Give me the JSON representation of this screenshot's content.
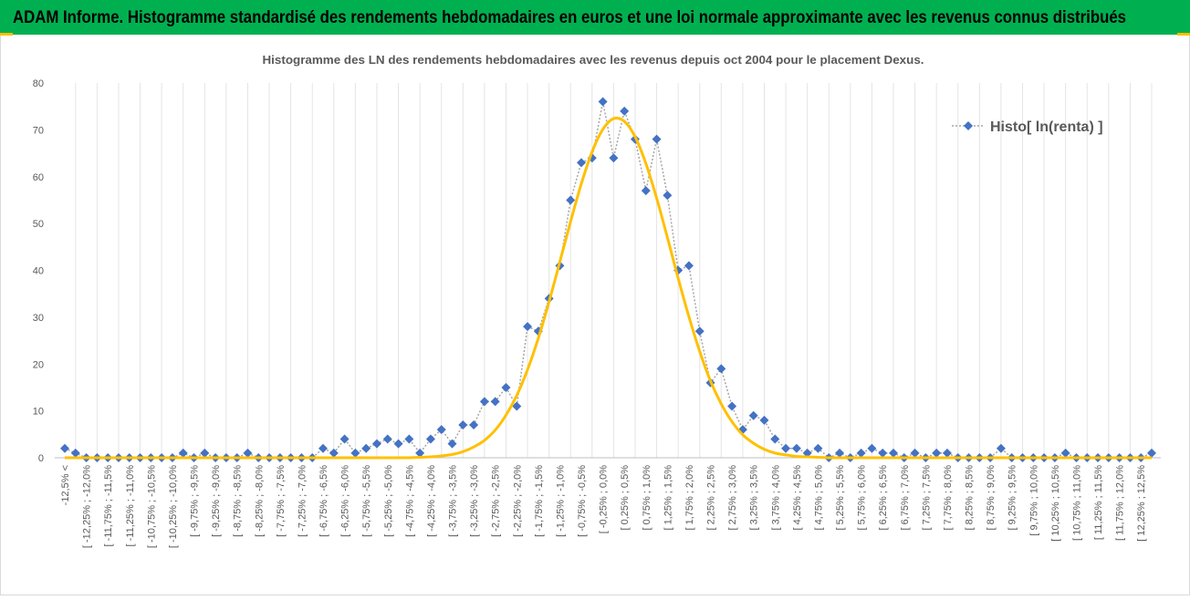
{
  "header": {
    "title": "ADAM Informe. Histogramme standardisé des rendements hebdomadaires en euros et une loi normale approximante avec les revenus connus distribués"
  },
  "chart_data": {
    "type": "line",
    "title": "Histogramme  des LN des rendements hebdomadaires avec les revenus depuis oct 2004 pour le placement Dexus.",
    "categories": [
      "-12,5% <",
      null,
      "[ -12,25% ; -12,0%",
      null,
      "[ -11,75% ; -11,5%",
      null,
      "[ -11,25% ; -11,0%",
      null,
      "[ -10,75% ; -10,5%",
      null,
      "[ -10,25% ; -10,0%",
      null,
      "[ -9,75% ; -9,5%",
      null,
      "[ -9,25% ; -9,0%",
      null,
      "[ -8,75% ; -8,5%",
      null,
      "[ -8,25% ; -8,0%",
      null,
      "[ -7,75% ; -7,5%",
      null,
      "[ -7,25% ; -7,0%",
      null,
      "[ -6,75% ; -6,5%",
      null,
      "[ -6,25% ; -6,0%",
      null,
      "[ -5,75% ; -5,5%",
      null,
      "[ -5,25% ; -5,0%",
      null,
      "[ -4,75% ; -4,5%",
      null,
      "[ -4,25% ; -4,0%",
      null,
      "[ -3,75% ; -3,5%",
      null,
      "[ -3,25% ; -3,0%",
      null,
      "[ -2,75% ; -2,5%",
      null,
      "[ -2,25% ; -2,0%",
      null,
      "[ -1,75% ; -1,5%",
      null,
      "[ -1,25% ; -1,0%",
      null,
      "[ -0,75% ; -0,5%",
      null,
      "[ -0,25% ; 0,0%",
      null,
      "[ 0,25% ; 0,5%",
      null,
      "[ 0,75% ; 1,0%",
      null,
      "[ 1,25% ; 1,5%",
      null,
      "[ 1,75% ; 2,0%",
      null,
      "[ 2,25% ; 2,5%",
      null,
      "[ 2,75% ; 3,0%",
      null,
      "[ 3,25% ; 3,5%",
      null,
      "[ 3,75% ; 4,0%",
      null,
      "[ 4,25% ; 4,5%",
      null,
      "[ 4,75% ; 5,0%",
      null,
      "[ 5,25% ; 5,5%",
      null,
      "[ 5,75% ; 6,0%",
      null,
      "[ 6,25% ; 6,5%",
      null,
      "[ 6,75% ; 7,0%",
      null,
      "[ 7,25% ; 7,5%",
      null,
      "[ 7,75% ; 8,0%",
      null,
      "[ 8,25% ; 8,5%",
      null,
      "[ 8,75% ; 9,0%",
      null,
      "[ 9,25% ; 9,5%",
      null,
      "[ 9,75% ; 10,0%",
      null,
      "[ 10,25% ; 10,5%",
      null,
      "[ 10,75% ; 11,0%",
      null,
      "[ 11,25% ; 11,5%",
      null,
      "[ 11,75% ; 12,0%",
      null,
      "[ 12,25% ; 12,5%",
      null
    ],
    "series": [
      {
        "name": "Histo[ ln(renta) ]",
        "color": "#4472c4",
        "line_color": "#a5a5a5",
        "values": [
          2,
          1,
          0,
          0,
          0,
          0,
          0,
          0,
          0,
          0,
          0,
          1,
          0,
          1,
          0,
          0,
          0,
          1,
          0,
          0,
          0,
          0,
          0,
          0,
          2,
          1,
          4,
          1,
          2,
          3,
          4,
          3,
          4,
          1,
          4,
          6,
          3,
          7,
          7,
          12,
          12,
          15,
          11,
          28,
          27,
          34,
          41,
          55,
          63,
          64,
          76,
          64,
          74,
          68,
          57,
          68,
          56,
          40,
          41,
          27,
          16,
          19,
          11,
          6,
          9,
          8,
          4,
          2,
          2,
          1,
          2,
          0,
          1,
          0,
          1,
          2,
          1,
          1,
          0,
          1,
          0,
          1,
          1,
          0,
          0,
          0,
          0,
          2,
          0,
          0,
          0,
          0,
          0,
          1,
          0,
          0,
          0,
          0,
          0,
          0,
          0,
          1
        ]
      },
      {
        "color": "#ffc000",
        "values": [
          0,
          0,
          0,
          0,
          0,
          0,
          0,
          0,
          0,
          0,
          0,
          0,
          0,
          0,
          0,
          0,
          0,
          0,
          0,
          0,
          0,
          0,
          0,
          0,
          0,
          0,
          0,
          0,
          0,
          0,
          0,
          0,
          0,
          0.1,
          0.2,
          0.4,
          0.7,
          1.3,
          2.3,
          3.7,
          5.9,
          9.1,
          13.3,
          18.8,
          25.5,
          33.3,
          41.8,
          50.4,
          58.5,
          65.3,
          70.1,
          72.4,
          71.8,
          68.5,
          62.8,
          55.4,
          47,
          38.3,
          30.1,
          22.7,
          16.4,
          11.5,
          7.7,
          4.9,
          3.1,
          1.8,
          1,
          0.6,
          0.3,
          0.2,
          0.1,
          0,
          0,
          0,
          0,
          0,
          0,
          0,
          0,
          0,
          0,
          0,
          0,
          0,
          0,
          0,
          0,
          0,
          0,
          0,
          0,
          0,
          0,
          0,
          0,
          0,
          0,
          0,
          0,
          0,
          0,
          0
        ]
      }
    ],
    "ylim": [
      0,
      80
    ],
    "yticks": [
      0,
      10,
      20,
      30,
      40,
      50,
      60,
      70,
      80
    ],
    "legend": "upper right",
    "grid": "x"
  }
}
